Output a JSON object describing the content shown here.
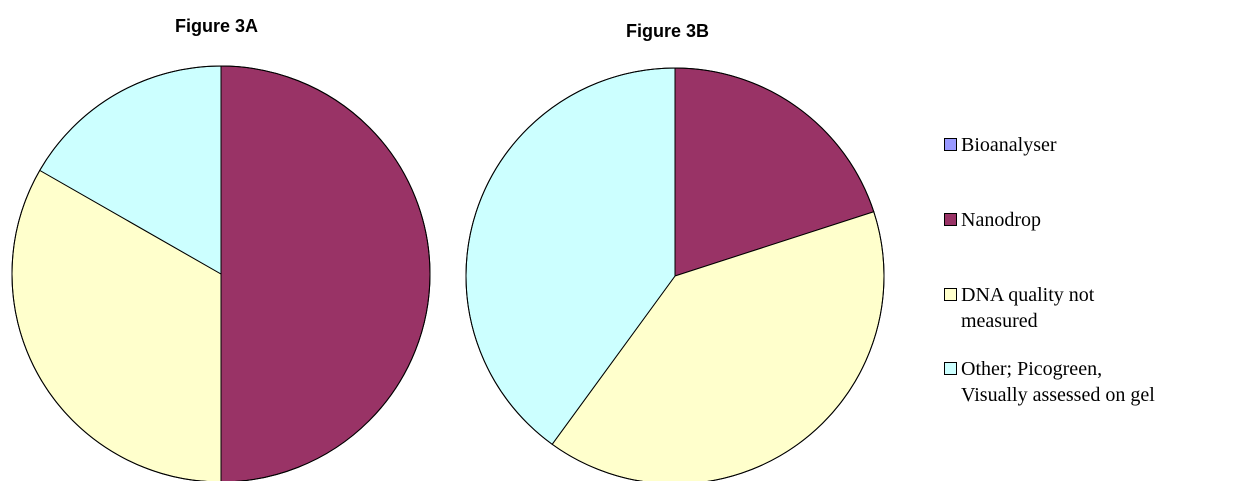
{
  "chart_data": [
    {
      "type": "pie",
      "title": "Figure 3A",
      "categories": [
        "Bioanalyser",
        "Nanodrop",
        "DNA quality not measured",
        "Other; Picogreen, Visually assessed on gel"
      ],
      "values": [
        0,
        50,
        33.3,
        16.7
      ]
    },
    {
      "type": "pie",
      "title": "Figure 3B",
      "categories": [
        "Bioanalyser",
        "Nanodrop",
        "DNA quality not measured",
        "Other; Picogreen, Visually assessed on gel"
      ],
      "values": [
        0,
        20,
        40,
        40
      ]
    }
  ],
  "legend": {
    "placement": "right",
    "items": [
      {
        "label": "Bioanalyser",
        "color": "#9999ff"
      },
      {
        "label": "Nanodrop",
        "color": "#993366"
      },
      {
        "label": "DNA quality not\nmeasured",
        "color": "#ffffcc"
      },
      {
        "label": "Other; Picogreen,\nVisually assessed on gel",
        "color": "#ccffff"
      }
    ]
  }
}
